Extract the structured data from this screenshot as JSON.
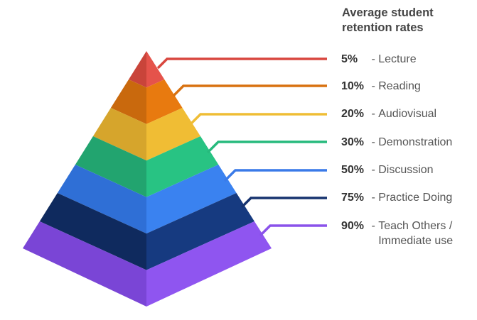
{
  "title": {
    "line1": "Average student",
    "line2": "retention rates"
  },
  "levels": [
    {
      "percent": "5%",
      "label": "Lecture",
      "label2": "",
      "left_color": "#c9443a",
      "right_color": "#e5534b",
      "line_color": "#d9473f"
    },
    {
      "percent": "10%",
      "label": "Reading",
      "label2": "",
      "left_color": "#c9690d",
      "right_color": "#e87a0f",
      "line_color": "#d87211"
    },
    {
      "percent": "20%",
      "label": "Audiovisual",
      "label2": "",
      "left_color": "#d6a52c",
      "right_color": "#f0bd34",
      "line_color": "#efbd35"
    },
    {
      "percent": "30%",
      "label": "Demonstration",
      "label2": "",
      "left_color": "#22a46f",
      "right_color": "#28c383",
      "line_color": "#27ba7d"
    },
    {
      "percent": "50%",
      "label": "Discussion",
      "label2": "",
      "left_color": "#2f6fd6",
      "right_color": "#3a82f0",
      "line_color": "#3a7ae8"
    },
    {
      "percent": "75%",
      "label": "Practice Doing",
      "label2": "",
      "left_color": "#0f2a5e",
      "right_color": "#163a80",
      "line_color": "#16336f"
    },
    {
      "percent": "90%",
      "label": "Teach Others /",
      "label2": "Immediate use",
      "left_color": "#7a45d6",
      "right_color": "#8f55f0",
      "line_color": "#8a52ea"
    }
  ]
}
